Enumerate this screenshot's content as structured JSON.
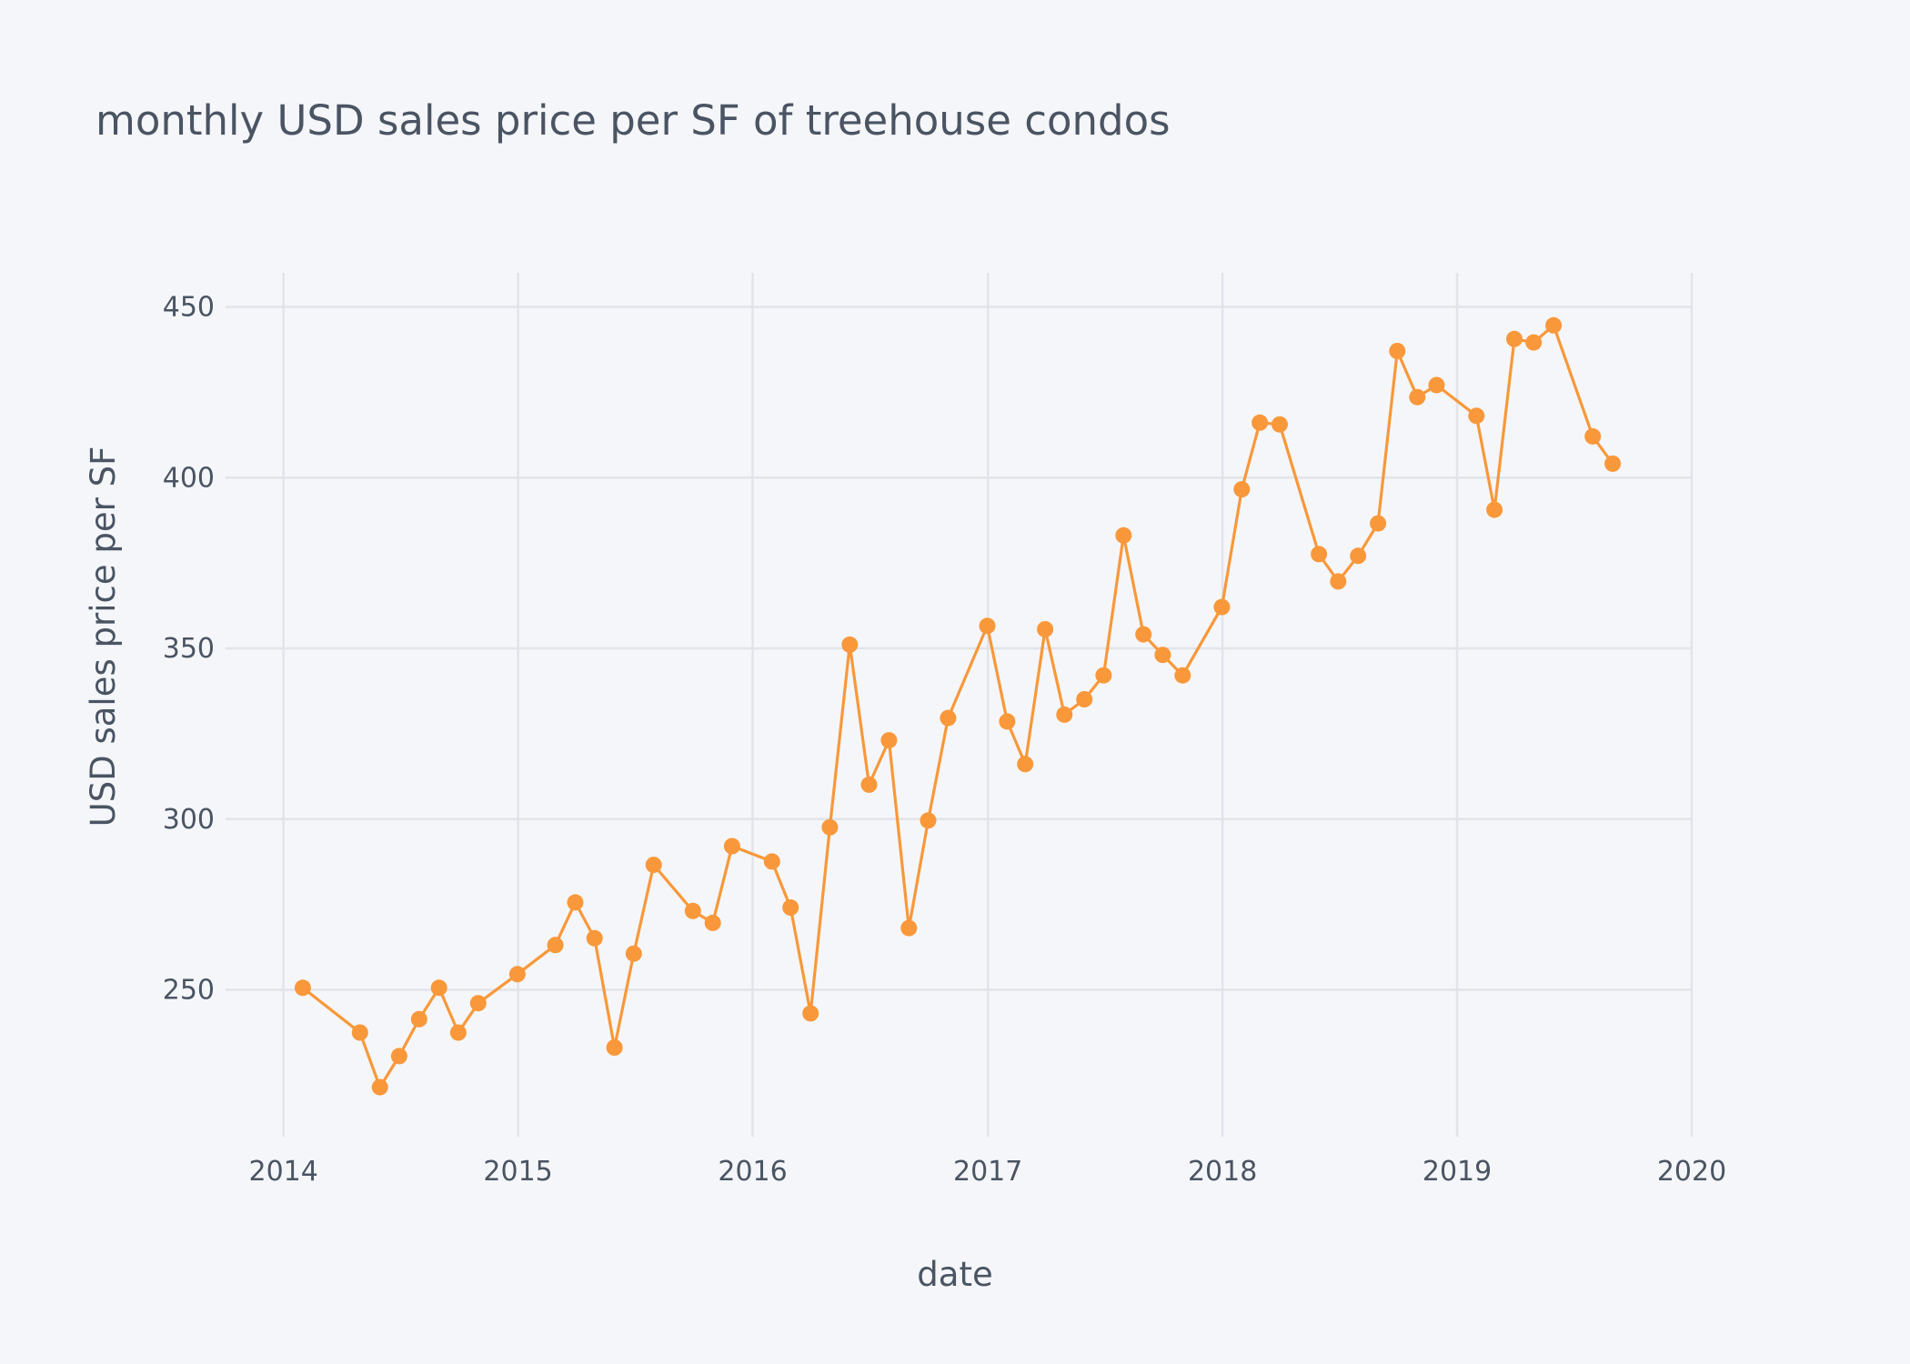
{
  "chart_data": {
    "type": "scatter",
    "mode": "lines+markers",
    "title": "monthly USD sales price per SF of treehouse condos",
    "xlabel": "date",
    "ylabel": "USD sales price per SF",
    "xlim": [
      "2013-11-20",
      "2020-01-01"
    ],
    "ylim": [
      207,
      460
    ],
    "x_tick_labels": [
      "2014",
      "2015",
      "2016",
      "2017",
      "2018",
      "2019",
      "2020"
    ],
    "y_tick_labels": [
      "250",
      "300",
      "350",
      "400",
      "450"
    ],
    "y_ticks": [
      250,
      300,
      350,
      400,
      450
    ],
    "grid": true,
    "color": "#f8983a",
    "series": [
      {
        "x": [
          "2014-01-31",
          "2014-04-30",
          "2014-05-31",
          "2014-06-30",
          "2014-07-31",
          "2014-08-31",
          "2014-09-30",
          "2014-10-31",
          "2014-12-31",
          "2015-02-28",
          "2015-03-31",
          "2015-04-30",
          "2015-05-31",
          "2015-06-30",
          "2015-07-31",
          "2015-09-30",
          "2015-10-31",
          "2015-11-30",
          "2016-01-31",
          "2016-02-29",
          "2016-03-31",
          "2016-04-30",
          "2016-05-31",
          "2016-06-30",
          "2016-07-31",
          "2016-08-31",
          "2016-09-30",
          "2016-10-31",
          "2016-12-31",
          "2017-01-31",
          "2017-02-28",
          "2017-03-31",
          "2017-04-30",
          "2017-05-31",
          "2017-06-30",
          "2017-07-31",
          "2017-08-31",
          "2017-09-30",
          "2017-10-31",
          "2017-12-31",
          "2018-01-31",
          "2018-02-28",
          "2018-03-31",
          "2018-05-31",
          "2018-06-30",
          "2018-07-31",
          "2018-08-31",
          "2018-09-30",
          "2018-10-31",
          "2018-11-30",
          "2019-01-31",
          "2019-02-28",
          "2019-03-31",
          "2019-04-30",
          "2019-05-31",
          "2019-07-31",
          "2019-08-31"
        ],
        "y": [
          250.6,
          237.5,
          221.5,
          230.6,
          241.4,
          250.6,
          237.5,
          246.1,
          254.6,
          263.1,
          275.6,
          265.1,
          233.1,
          260.6,
          286.6,
          273.1,
          269.6,
          292.1,
          287.6,
          274.1,
          243.1,
          297.6,
          351.1,
          310.1,
          323.1,
          268.1,
          299.6,
          329.6,
          356.6,
          328.6,
          316.1,
          355.6,
          330.6,
          335.1,
          342.1,
          383.1,
          354.1,
          348.1,
          342.1,
          362.1,
          396.6,
          416.1,
          415.6,
          377.6,
          369.6,
          377.1,
          386.6,
          437.1,
          423.6,
          427.1,
          418.1,
          390.6,
          440.6,
          439.6,
          444.6,
          412.1,
          404.1
        ]
      }
    ]
  }
}
